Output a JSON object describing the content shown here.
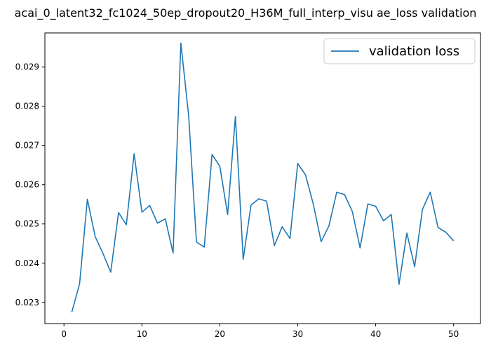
{
  "chart_data": {
    "type": "line",
    "title": "acai_0_latent32_fc1024_50ep_dropout20_H36M_full_interp_visu ae_loss validation",
    "xlabel": "",
    "ylabel": "",
    "xlim": [
      -2.45,
      53.45
    ],
    "ylim": [
      0.02246,
      0.02987
    ],
    "x_ticks": [
      0,
      10,
      20,
      30,
      40,
      50
    ],
    "x_tick_labels": [
      "0",
      "10",
      "20",
      "30",
      "40",
      "50"
    ],
    "y_ticks": [
      0.023,
      0.024,
      0.025,
      0.026,
      0.027,
      0.028,
      0.029
    ],
    "y_tick_labels": [
      "0.023",
      "0.024",
      "0.025",
      "0.026",
      "0.027",
      "0.028",
      "0.029"
    ],
    "grid": false,
    "legend_position": "top-right",
    "series": [
      {
        "name": "validation loss",
        "color": "#1f77b4",
        "x": [
          1,
          2,
          3,
          4,
          5,
          6,
          7,
          8,
          9,
          10,
          11,
          12,
          13,
          14,
          15,
          16,
          17,
          18,
          19,
          20,
          21,
          22,
          23,
          24,
          25,
          26,
          27,
          28,
          29,
          30,
          31,
          32,
          33,
          34,
          35,
          36,
          37,
          38,
          39,
          40,
          41,
          42,
          43,
          44,
          45,
          46,
          47,
          48,
          49,
          50
        ],
        "y": [
          0.02275,
          0.02347,
          0.02563,
          0.02468,
          0.02425,
          0.02377,
          0.02529,
          0.02498,
          0.02679,
          0.0253,
          0.02547,
          0.02502,
          0.02513,
          0.02426,
          0.02961,
          0.02776,
          0.02454,
          0.02441,
          0.02677,
          0.02647,
          0.02524,
          0.02774,
          0.0241,
          0.02548,
          0.02564,
          0.02558,
          0.02445,
          0.02493,
          0.02463,
          0.02654,
          0.02625,
          0.0255,
          0.02455,
          0.02495,
          0.02581,
          0.02575,
          0.02532,
          0.02439,
          0.02551,
          0.02545,
          0.02508,
          0.02524,
          0.02346,
          0.02477,
          0.02391,
          0.02537,
          0.02581,
          0.02491,
          0.02479,
          0.02457
        ]
      }
    ]
  }
}
